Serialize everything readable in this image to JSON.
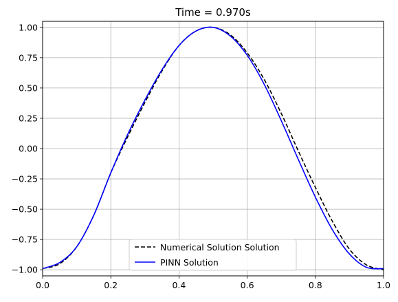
{
  "chart_data": {
    "type": "line",
    "title": "Time = 0.970s",
    "xlabel": "",
    "ylabel": "",
    "xlim": [
      0.0,
      1.0
    ],
    "ylim": [
      -1.05,
      1.05
    ],
    "x_ticks": [
      0.0,
      0.2,
      0.4,
      0.6,
      0.8,
      1.0
    ],
    "y_ticks": [
      -1.0,
      -0.75,
      -0.5,
      -0.25,
      0.0,
      0.25,
      0.5,
      0.75,
      1.0
    ],
    "x_tick_labels": [
      "0.0",
      "0.2",
      "0.4",
      "0.6",
      "0.8",
      "1.0"
    ],
    "y_tick_labels": [
      "−1.00",
      "−0.75",
      "−0.50",
      "−0.25",
      "0.00",
      "0.25",
      "0.50",
      "0.75",
      "1.00"
    ],
    "grid": true,
    "legend": {
      "position": "bottom-center",
      "entries": [
        "Numerical Solution Solution",
        "PINN Solution"
      ]
    },
    "x": [
      0.0,
      0.05,
      0.1,
      0.15,
      0.2,
      0.25,
      0.3,
      0.35,
      0.4,
      0.45,
      0.5,
      0.55,
      0.6,
      0.65,
      0.7,
      0.75,
      0.8,
      0.85,
      0.9,
      0.95,
      1.0
    ],
    "series": [
      {
        "name": "Numerical Solution Solution",
        "color": "#000000",
        "style": "dashed",
        "values": [
          -0.99,
          -0.95,
          -0.81,
          -0.55,
          -0.2,
          0.1,
          0.38,
          0.64,
          0.85,
          0.97,
          1.0,
          0.94,
          0.79,
          0.57,
          0.29,
          -0.02,
          -0.32,
          -0.6,
          -0.83,
          -0.96,
          -1.0
        ]
      },
      {
        "name": "PINN Solution",
        "color": "#0000ff",
        "style": "solid",
        "values": [
          -0.99,
          -0.94,
          -0.81,
          -0.55,
          -0.2,
          0.12,
          0.4,
          0.65,
          0.85,
          0.97,
          1.0,
          0.93,
          0.77,
          0.53,
          0.23,
          -0.09,
          -0.4,
          -0.67,
          -0.87,
          -0.98,
          -0.99
        ]
      }
    ]
  }
}
